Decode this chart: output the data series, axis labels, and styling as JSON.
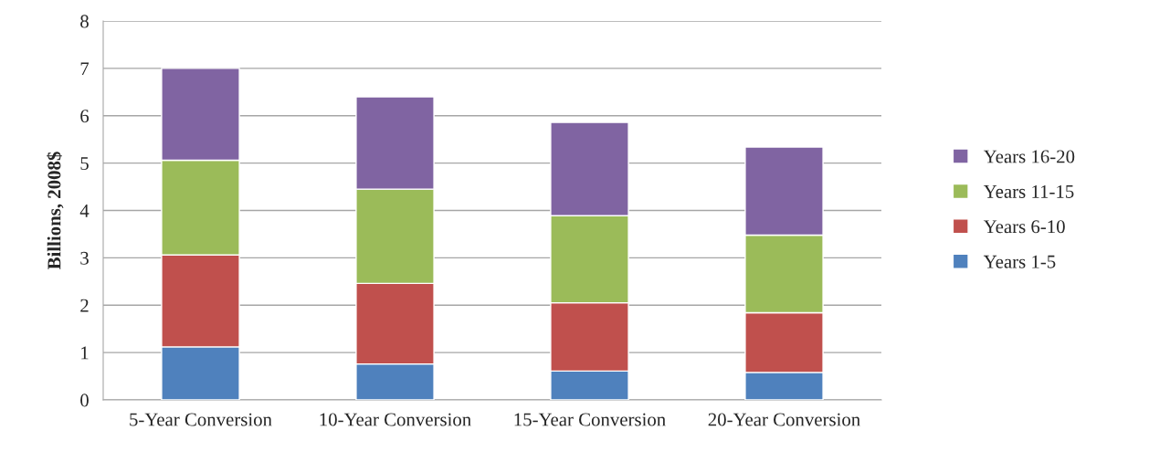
{
  "chart_data": {
    "type": "bar",
    "stacked": true,
    "ylabel": "Billions, 2008$",
    "categories": [
      "5-Year Conversion",
      "10-Year Conversion",
      "15-Year Conversion",
      "20-Year Conversion"
    ],
    "series": [
      {
        "name": "Years 1-5",
        "color": "#4f81bd",
        "values": [
          1.12,
          0.76,
          0.61,
          0.58
        ]
      },
      {
        "name": "Years 6-10",
        "color": "#c0504d",
        "values": [
          1.94,
          1.7,
          1.44,
          1.26
        ]
      },
      {
        "name": "Years 11-15",
        "color": "#9bbb59",
        "values": [
          2.0,
          1.99,
          1.84,
          1.64
        ]
      },
      {
        "name": "Years 16-20",
        "color": "#8064a2",
        "values": [
          1.94,
          1.95,
          1.97,
          1.86
        ]
      }
    ],
    "ylim": [
      0,
      8
    ],
    "yticks": [
      0,
      1,
      2,
      3,
      4,
      5,
      6,
      7,
      8
    ],
    "grid": "y",
    "legend": "right"
  }
}
